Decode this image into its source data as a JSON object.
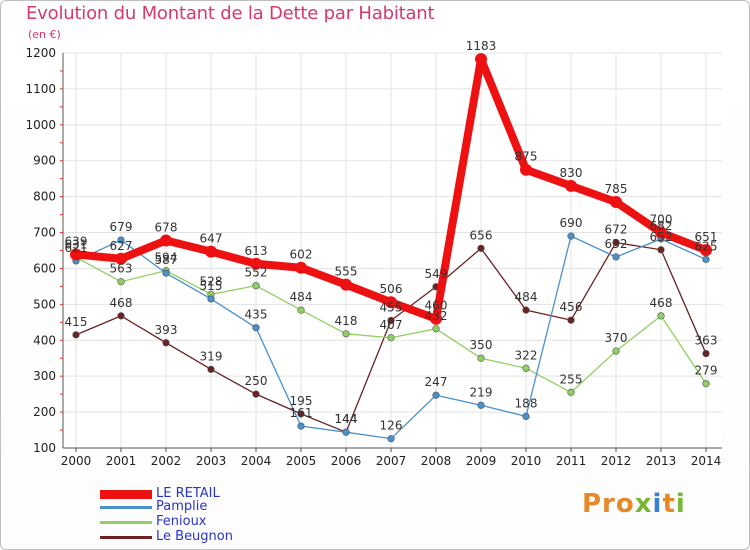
{
  "title": "Evolution du Montant de la Dette par Habitant",
  "subtitle": "(en €)",
  "logo": {
    "text": "Proxiti"
  },
  "chart_data": {
    "type": "line",
    "title": "Evolution du Montant de la Dette par Habitant",
    "ylabel": "(en €)",
    "xlabel": "",
    "x": [
      "2000",
      "2001",
      "2002",
      "2003",
      "2004",
      "2005",
      "2006",
      "2007",
      "2008",
      "2009",
      "2010",
      "2011",
      "2012",
      "2013",
      "2014"
    ],
    "ylim": [
      100,
      1200
    ],
    "yticks": [
      100,
      200,
      300,
      400,
      500,
      600,
      700,
      800,
      900,
      1000,
      1100,
      1200
    ],
    "grid": true,
    "legend_position": "bottom-left",
    "series": [
      {
        "name": "LE RETAIL",
        "color": "#ee1111",
        "values": [
          639,
          627,
          678,
          647,
          613,
          602,
          555,
          506,
          460,
          1183,
          875,
          830,
          785,
          700,
          651
        ]
      },
      {
        "name": "Pamplie",
        "color": "#4a90cc",
        "values": [
          621,
          679,
          587,
          515,
          435,
          161,
          144,
          126,
          247,
          219,
          188,
          690,
          632,
          682,
          625
        ]
      },
      {
        "name": "Fenioux",
        "color": "#8fd060",
        "values": [
          631,
          563,
          594,
          528,
          552,
          484,
          418,
          407,
          432,
          350,
          322,
          255,
          370,
          468,
          279
        ]
      },
      {
        "name": "Le Beugnon",
        "color": "#6b2222",
        "values": [
          415,
          468,
          393,
          319,
          250,
          195,
          144,
          455,
          549,
          656,
          484,
          456,
          672,
          652,
          363
        ]
      }
    ]
  }
}
